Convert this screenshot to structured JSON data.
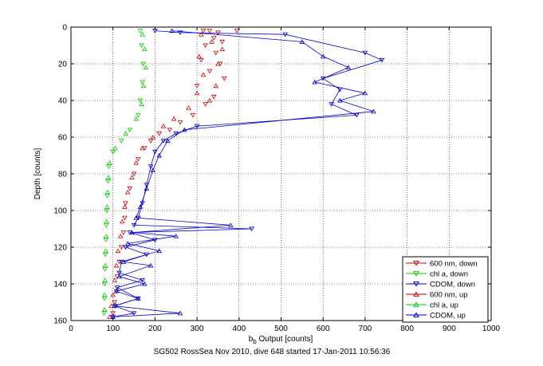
{
  "figure_caption": "SG502 RossSea Nov 2010, dive 648 started 17-Jan-2011 10:56:36",
  "chart_data": {
    "type": "scatter",
    "xlabel_main": "b",
    "xlabel_sub": "b",
    "xlabel_rest": " Output [counts]",
    "ylabel": "Depth [counts]",
    "xlim": [
      0,
      1000
    ],
    "ylim": [
      0,
      160
    ],
    "y_reversed": true,
    "grid": true,
    "grid_style": "dotted",
    "xticks": [
      0,
      100,
      200,
      300,
      400,
      500,
      600,
      700,
      800,
      900,
      1000
    ],
    "yticks": [
      0,
      20,
      40,
      60,
      80,
      100,
      120,
      140,
      160
    ],
    "legend_position": "bottom-right",
    "series": [
      {
        "name": "600 nm, down",
        "color": "#cc0000",
        "marker": "triangle-down",
        "line": false,
        "points": [
          [
            315,
            2
          ],
          [
            330,
            2
          ],
          [
            350,
            3
          ],
          [
            395,
            2
          ],
          [
            340,
            6
          ],
          [
            360,
            8
          ],
          [
            320,
            10
          ],
          [
            345,
            14
          ],
          [
            310,
            18
          ],
          [
            355,
            20
          ],
          [
            330,
            24
          ],
          [
            365,
            28
          ],
          [
            300,
            32
          ],
          [
            340,
            38
          ],
          [
            320,
            42
          ],
          [
            290,
            48
          ],
          [
            260,
            52
          ],
          [
            235,
            56
          ],
          [
            210,
            58
          ],
          [
            190,
            62
          ],
          [
            175,
            66
          ],
          [
            160,
            72
          ],
          [
            150,
            80
          ],
          [
            140,
            88
          ],
          [
            130,
            96
          ],
          [
            128,
            104
          ],
          [
            125,
            112
          ],
          [
            120,
            120
          ],
          [
            115,
            128
          ],
          [
            110,
            136
          ],
          [
            108,
            144
          ],
          [
            104,
            150
          ],
          [
            100,
            156
          ]
        ]
      },
      {
        "name": "chl a, down",
        "color": "#00cc00",
        "marker": "triangle-down",
        "line": false,
        "points": [
          [
            165,
            2
          ],
          [
            168,
            10
          ],
          [
            172,
            20
          ],
          [
            170,
            30
          ],
          [
            165,
            40
          ],
          [
            160,
            48
          ],
          [
            140,
            56
          ],
          [
            120,
            62
          ],
          [
            100,
            68
          ],
          [
            90,
            76
          ],
          [
            88,
            84
          ],
          [
            86,
            92
          ],
          [
            85,
            100
          ],
          [
            84,
            108
          ],
          [
            83,
            116
          ],
          [
            82,
            124
          ],
          [
            81,
            132
          ],
          [
            80,
            140
          ],
          [
            80,
            148
          ],
          [
            79,
            156
          ]
        ]
      },
      {
        "name": "CDOM, down",
        "color": "#0000cc",
        "marker": "triangle-down",
        "line": true,
        "points": [
          [
            200,
            2
          ],
          [
            260,
            3
          ],
          [
            510,
            4
          ],
          [
            700,
            14
          ],
          [
            740,
            18
          ],
          [
            600,
            28
          ],
          [
            640,
            34
          ],
          [
            620,
            42
          ],
          [
            680,
            48
          ],
          [
            300,
            54
          ],
          [
            250,
            58
          ],
          [
            220,
            62
          ],
          [
            200,
            68
          ],
          [
            190,
            76
          ],
          [
            180,
            86
          ],
          [
            170,
            96
          ],
          [
            160,
            104
          ],
          [
            150,
            108
          ],
          [
            430,
            110
          ],
          [
            140,
            112
          ],
          [
            200,
            116
          ],
          [
            130,
            120
          ],
          [
            180,
            124
          ],
          [
            120,
            128
          ],
          [
            115,
            134
          ],
          [
            170,
            138
          ],
          [
            110,
            142
          ],
          [
            160,
            148
          ],
          [
            105,
            152
          ],
          [
            150,
            156
          ],
          [
            100,
            158
          ]
        ]
      },
      {
        "name": "600 nm, up",
        "color": "#cc0000",
        "marker": "triangle-up",
        "line": false,
        "points": [
          [
            310,
            4
          ],
          [
            335,
            8
          ],
          [
            360,
            12
          ],
          [
            305,
            16
          ],
          [
            350,
            20
          ],
          [
            315,
            26
          ],
          [
            345,
            32
          ],
          [
            300,
            36
          ],
          [
            330,
            40
          ],
          [
            280,
            44
          ],
          [
            245,
            50
          ],
          [
            220,
            54
          ],
          [
            195,
            60
          ],
          [
            170,
            66
          ],
          [
            155,
            74
          ],
          [
            145,
            82
          ],
          [
            135,
            90
          ],
          [
            128,
            98
          ],
          [
            122,
            106
          ],
          [
            118,
            114
          ],
          [
            112,
            122
          ],
          [
            108,
            130
          ],
          [
            104,
            138
          ],
          [
            100,
            146
          ],
          [
            96,
            152
          ],
          [
            92,
            158
          ]
        ]
      },
      {
        "name": "chl a, up",
        "color": "#00cc00",
        "marker": "triangle-up",
        "line": false,
        "points": [
          [
            170,
            4
          ],
          [
            175,
            12
          ],
          [
            178,
            22
          ],
          [
            173,
            32
          ],
          [
            168,
            42
          ],
          [
            155,
            50
          ],
          [
            130,
            58
          ],
          [
            105,
            66
          ],
          [
            92,
            74
          ],
          [
            89,
            82
          ],
          [
            87,
            90
          ],
          [
            86,
            98
          ],
          [
            85,
            106
          ],
          [
            84,
            114
          ],
          [
            83,
            122
          ],
          [
            82,
            130
          ],
          [
            81,
            138
          ],
          [
            80,
            146
          ],
          [
            80,
            154
          ]
        ]
      },
      {
        "name": "CDOM, up",
        "color": "#0000cc",
        "marker": "triangle-up",
        "line": true,
        "points": [
          [
            240,
            2
          ],
          [
            550,
            8
          ],
          [
            600,
            16
          ],
          [
            660,
            22
          ],
          [
            580,
            30
          ],
          [
            700,
            36
          ],
          [
            640,
            40
          ],
          [
            720,
            46
          ],
          [
            270,
            56
          ],
          [
            230,
            62
          ],
          [
            210,
            70
          ],
          [
            195,
            78
          ],
          [
            180,
            88
          ],
          [
            165,
            98
          ],
          [
            155,
            104
          ],
          [
            380,
            108
          ],
          [
            145,
            112
          ],
          [
            250,
            114
          ],
          [
            135,
            118
          ],
          [
            210,
            122
          ],
          [
            125,
            128
          ],
          [
            190,
            130
          ],
          [
            115,
            136
          ],
          [
            175,
            140
          ],
          [
            108,
            144
          ],
          [
            160,
            148
          ],
          [
            104,
            152
          ],
          [
            260,
            156
          ],
          [
            100,
            158
          ]
        ]
      }
    ]
  }
}
